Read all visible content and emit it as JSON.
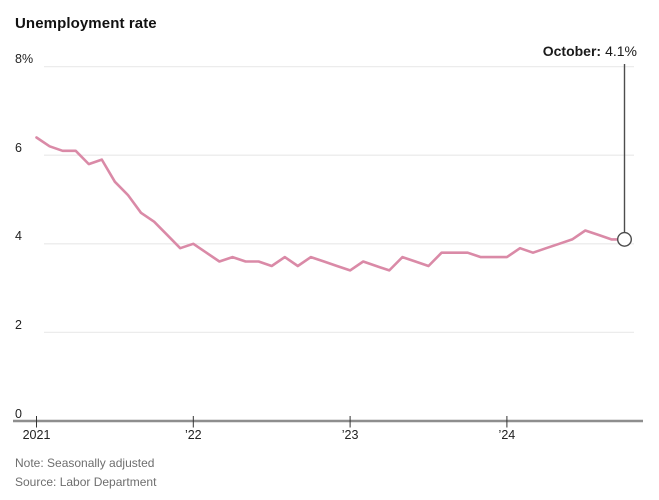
{
  "title": "Unemployment rate",
  "note": "Note: Seasonally adjusted",
  "source": "Source: Labor Department",
  "colors": {
    "line": "#da8aa7",
    "pointer": "#4d4d4d",
    "marker_fill": "#ffffff",
    "grid": "#ececec",
    "axis": "#8e8e8e",
    "tick": "#333333",
    "tick_label": "#222222",
    "title_text": "#111111",
    "muted_text": "#6e6e6e",
    "background": "#ffffff"
  },
  "chart_data": {
    "type": "line",
    "title": "Unemployment rate",
    "xlabel": "",
    "ylabel": "",
    "unit": "%",
    "x_start": "Jan 2021",
    "x_end": "Oct 2024",
    "x_frequency": "monthly",
    "ylim": [
      0,
      8
    ],
    "grid": "horizontal",
    "legend": "none",
    "yticks": [
      {
        "label": "8%",
        "value": 8
      },
      {
        "label": "6",
        "value": 6
      },
      {
        "label": "4",
        "value": 4
      },
      {
        "label": "2",
        "value": 2
      },
      {
        "label": "0",
        "value": 0
      }
    ],
    "xticks": [
      {
        "label": "2021",
        "month_index": 0
      },
      {
        "label": "’22",
        "month_index": 12
      },
      {
        "label": "’23",
        "month_index": 24
      },
      {
        "label": "’24",
        "month_index": 36
      }
    ],
    "annotation": {
      "label": "October:",
      "value": "4.1%",
      "month_index": 45,
      "y_value": 4.1
    },
    "series": [
      {
        "name": "Unemployment rate",
        "values": [
          6.4,
          6.2,
          6.1,
          6.1,
          5.8,
          5.9,
          5.4,
          5.1,
          4.7,
          4.5,
          4.2,
          3.9,
          4.0,
          3.8,
          3.6,
          3.7,
          3.6,
          3.6,
          3.5,
          3.7,
          3.5,
          3.7,
          3.6,
          3.5,
          3.4,
          3.6,
          3.5,
          3.4,
          3.7,
          3.6,
          3.5,
          3.8,
          3.8,
          3.8,
          3.7,
          3.7,
          3.7,
          3.9,
          3.8,
          3.9,
          4.0,
          4.1,
          4.3,
          4.2,
          4.1,
          4.1
        ]
      }
    ]
  }
}
